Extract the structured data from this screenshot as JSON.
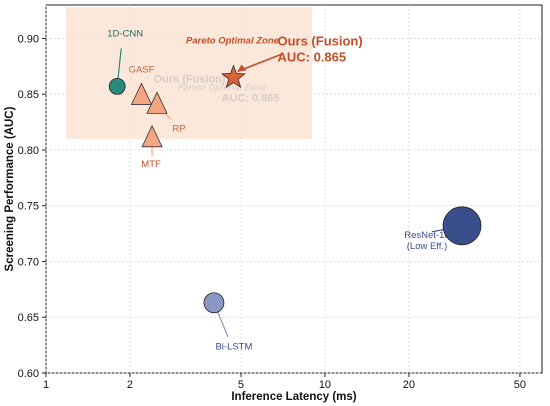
{
  "chart_data": {
    "type": "scatter",
    "title": "",
    "xlabel": "Inference Latency (ms)",
    "ylabel": "Screening Performance (AUC)",
    "xscale": "log",
    "xlim": [
      1,
      60
    ],
    "ylim": [
      0.6,
      0.93
    ],
    "xticks": [
      1,
      2,
      5,
      10,
      20,
      50
    ],
    "yticks": [
      0.6,
      0.65,
      0.7,
      0.75,
      0.8,
      0.85,
      0.9
    ],
    "grid": true,
    "zone": {
      "label": "Pareto Optimal Zone",
      "x_range": [
        1.18,
        9.0
      ],
      "y_range": [
        0.81,
        0.928
      ],
      "color": "#fbe5d6"
    },
    "points": [
      {
        "label": "1D-CNN",
        "x": 1.8,
        "y": 0.857,
        "marker": "circle",
        "size": "small",
        "color": "#2a8a7a"
      },
      {
        "label": "GASF",
        "x": 2.2,
        "y": 0.848,
        "marker": "triangle",
        "size": "small",
        "color": "#f4a582"
      },
      {
        "label": "RP",
        "x": 2.5,
        "y": 0.84,
        "marker": "triangle",
        "size": "small",
        "color": "#f4a582"
      },
      {
        "label": "MTF",
        "x": 2.4,
        "y": 0.81,
        "marker": "triangle",
        "size": "small",
        "color": "#f4a582"
      },
      {
        "label": "Ours (Fusion)",
        "x": 4.7,
        "y": 0.865,
        "marker": "star",
        "size": "small",
        "color": "#d9623b"
      },
      {
        "label": "Bi-LSTM",
        "x": 4.0,
        "y": 0.663,
        "marker": "circle",
        "size": "medium",
        "color": "#8a96c4"
      },
      {
        "label": "ResNet-18\n(Low Eff.)",
        "x": 31,
        "y": 0.732,
        "marker": "circle",
        "size": "large",
        "color": "#3b4e8c"
      }
    ],
    "annotation": {
      "label": "AUC: 0.865",
      "color": "#c0502a"
    }
  }
}
